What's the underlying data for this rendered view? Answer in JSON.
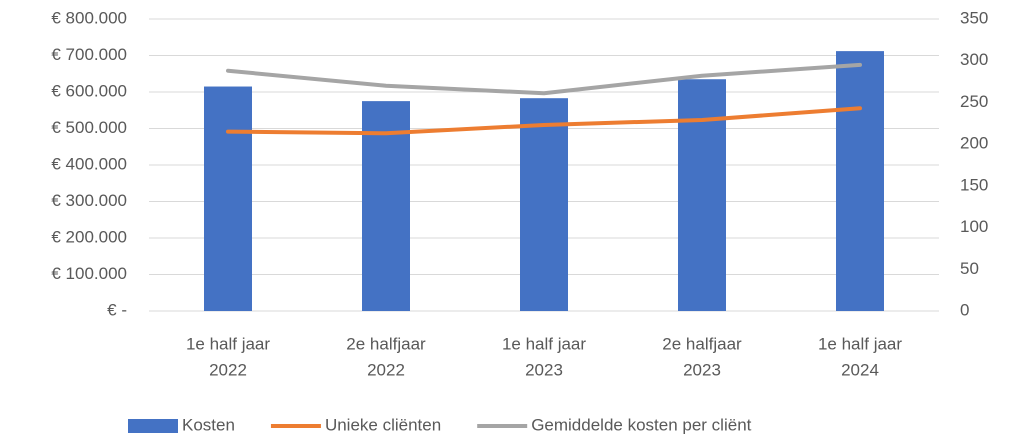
{
  "chart_data": {
    "type": "bar",
    "categories": [
      [
        "1e half jaar",
        "2022"
      ],
      [
        "2e halfjaar",
        "2022"
      ],
      [
        "1e half jaar",
        "2023"
      ],
      [
        "2e halfjaar",
        "2023"
      ],
      [
        "1e half jaar",
        "2024"
      ]
    ],
    "series": [
      {
        "name": "Kosten",
        "color": "#4472c4",
        "type": "bar",
        "values": [
          615000,
          575000,
          583000,
          635000,
          712000
        ]
      },
      {
        "name": "Unieke cliënten",
        "color": "#ed7d31",
        "type": "line",
        "axis": "y2",
        "values": [
          215,
          213,
          223,
          229,
          243
        ]
      },
      {
        "name": "Gemiddelde kosten per cliënt",
        "color": "#a5a5a5",
        "type": "line",
        "axis": "y2",
        "values": [
          288,
          270,
          261,
          282,
          295
        ]
      }
    ],
    "ylim": [
      0,
      800000
    ],
    "yticks": [
      {
        "value": 0,
        "label": "€ -"
      },
      {
        "value": 100000,
        "label": "€ 100.000"
      },
      {
        "value": 200000,
        "label": "€ 200.000"
      },
      {
        "value": 300000,
        "label": "€ 300.000"
      },
      {
        "value": 400000,
        "label": "€ 400.000"
      },
      {
        "value": 500000,
        "label": "€ 500.000"
      },
      {
        "value": 600000,
        "label": "€ 600.000"
      },
      {
        "value": 700000,
        "label": "€ 700.000"
      },
      {
        "value": 800000,
        "label": "€ 800.000"
      }
    ],
    "y2lim": [
      0,
      350
    ],
    "y2ticks": [
      0,
      50,
      100,
      150,
      200,
      250,
      300,
      350
    ],
    "grid": true,
    "legend": "bottom"
  }
}
